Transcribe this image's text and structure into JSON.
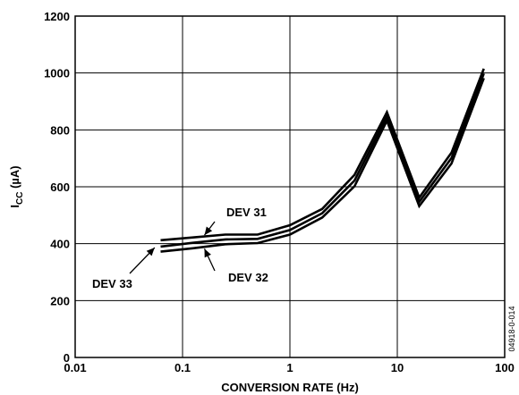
{
  "chart_data": {
    "type": "line",
    "title": "",
    "xlabel": "CONVERSION RATE (Hz)",
    "ylabel_main": "I",
    "ylabel_sub": "CC",
    "ylabel_unit": " (µA)",
    "xscale": "log",
    "xlim": [
      0.01,
      100
    ],
    "ylim": [
      0,
      1200
    ],
    "grid": true,
    "xticks": [
      0.01,
      0.1,
      1,
      10,
      100
    ],
    "xtick_labels": [
      "0.01",
      "0.1",
      "1",
      "10",
      "100"
    ],
    "yticks": [
      0,
      200,
      400,
      600,
      800,
      1000,
      1200
    ],
    "ytick_labels": [
      "0",
      "200",
      "400",
      "600",
      "800",
      "1000",
      "1200"
    ],
    "series": [
      {
        "name": "DEV 31",
        "x": [
          0.0625,
          0.125,
          0.25,
          0.5,
          1,
          2,
          4,
          8,
          16,
          32,
          64
        ],
        "y": [
          412,
          422,
          432,
          432,
          465,
          522,
          642,
          862,
          562,
          720,
          1015
        ]
      },
      {
        "name": "DEV 32",
        "x": [
          0.0625,
          0.125,
          0.25,
          0.5,
          1,
          2,
          4,
          8,
          16,
          32,
          64
        ],
        "y": [
          372,
          384,
          398,
          402,
          432,
          492,
          602,
          832,
          532,
          682,
          982
        ]
      },
      {
        "name": "DEV 33",
        "x": [
          0.0625,
          0.125,
          0.25,
          0.5,
          1,
          2,
          4,
          8,
          16,
          32,
          64
        ],
        "y": [
          390,
          403,
          415,
          417,
          448,
          507,
          622,
          847,
          547,
          701,
          998
        ]
      }
    ],
    "annotations": [
      {
        "text": "DEV 31",
        "target_x": 0.16,
        "target_y": 430
      },
      {
        "text": "DEV 32",
        "target_x": 0.16,
        "target_y": 382
      },
      {
        "text": "DEV 33",
        "target_x": 0.055,
        "target_y": 386
      }
    ],
    "figure_code": "04918-0-014",
    "colors": {
      "line": "#000000",
      "grid": "#000000",
      "background": "#ffffff"
    }
  }
}
